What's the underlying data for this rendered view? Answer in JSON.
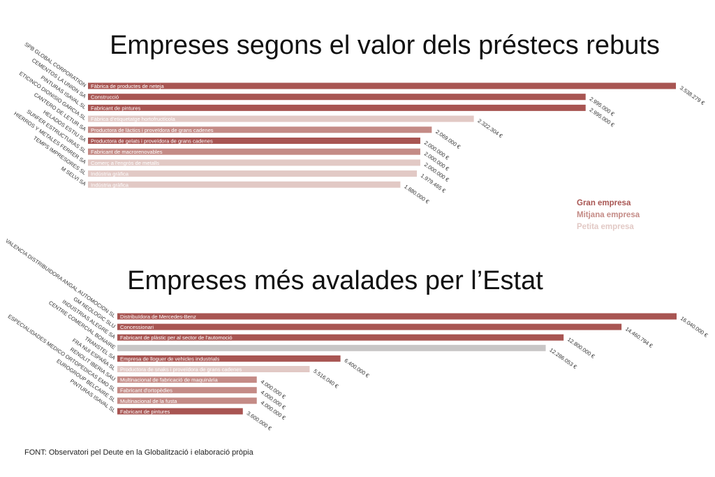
{
  "colors": {
    "gran": "#a85552",
    "mitjana": "#c48b86",
    "petita": "#e2c9c5",
    "unknown": "#c8c6c6"
  },
  "legend": [
    {
      "label": "Gran empresa",
      "size": "gran"
    },
    {
      "label": "Mitjana empresa",
      "size": "mitjana"
    },
    {
      "label": "Petita empresa",
      "size": "petita"
    }
  ],
  "source": "FONT: Observatori pel Deute en la Globalització i elaboració pròpia",
  "chart_data": [
    {
      "type": "bar",
      "orientation": "horizontal",
      "title": "Empreses segons el valor dels préstecs rebuts",
      "xlim": [
        0,
        3538279
      ],
      "companies": [
        "SPB GLOBAL CORPORATION",
        "CEMENTOS LA UNION SA",
        "PINTURAS ISAVAL SL",
        "ETICINCO DIONISIO GARCIA SL",
        "CANTERO DE LETUR SA",
        "HELADOS ESTIU SA",
        "SUNFER ESTRUCTURAS SL",
        "HIERROS Y METALES FERRER SA",
        "TEMPS IMPRESORES SL",
        "M SELVI SA"
      ],
      "categories": [
        "Fàbrica de productes de neteja",
        "Construcció",
        "Fabricant de pintures",
        "Fàbrica d'etiquetatge hortofructícola",
        "Productora de làctics i proveïdora de grans cadenes",
        "Productora de gelats i proveïdora de grans cadenes",
        "Fabricant de macrorenovables",
        "Comerç a l'engròs de metalls",
        "Indústria gràfica",
        "Indústria gràfica"
      ],
      "values": [
        3538279,
        2995000,
        2995000,
        2322304,
        2069000,
        2000000,
        2000000,
        2000000,
        1979465,
        1880000
      ],
      "value_labels": [
        "3.538.279 €",
        "2.995.000 €",
        "2.995.000 €",
        "2.322.304 €",
        "2.069.000 €",
        "2.000.000 €",
        "2.000.000 €",
        "2.000.000 €",
        "1.979.465 €",
        "1.880.000 €"
      ],
      "sizes": [
        "gran",
        "gran",
        "gran",
        "petita",
        "mitjana",
        "gran",
        "mitjana",
        "petita",
        "petita",
        "petita"
      ]
    },
    {
      "type": "bar",
      "orientation": "horizontal",
      "title": "Empreses més avalades per l’Estat",
      "xlim": [
        0,
        16040000
      ],
      "companies": [
        "VALENCIA DISTRIBUIDORA ANGAL AUTOMOCION SL",
        "GM NEOLOGIC SLU",
        "INDUSTRIAS ALEGRE SA",
        "CENTRE COMERCIAL BONAIRE",
        "TRANSTEL SA",
        "FRA NUI ESPAÑA SL",
        "RENOLIT IBERIA SAU",
        "ESPECIALIDADES MEDICO ORTOPEDICAS EMO SL",
        "EUROGROUP BELCAIRE SL",
        "PINTURAS ISAVAL SL"
      ],
      "categories": [
        "Distribuïdora de Mercedes-Benz",
        "Concessionari",
        "Fabricant de plàstic per al sector de l'automoció",
        "",
        "Empresa de lloguer de vehicles industrials",
        "Productora de snaks i proveïdora de grans cadenes",
        "Multinacional de fabricació de maquinària",
        "Fabricant d'ortopèdies",
        "Multinacional de la fusta",
        "Fabricant de pintures"
      ],
      "values": [
        16040000,
        14460794,
        12800000,
        12286053,
        6400000,
        5516040,
        4000000,
        4000000,
        4000000,
        3600000
      ],
      "value_labels": [
        "16.040.000 €",
        "14.460.794 €",
        "12.800.000 €",
        "12.286.053 €",
        "6.400.000 €",
        "5.516.040 €",
        "4.000.000 €",
        "4.000.000 €",
        "4.000.000 €",
        "3.600.000 €"
      ],
      "sizes": [
        "gran",
        "gran",
        "gran",
        "unknown",
        "gran",
        "petita",
        "mitjana",
        "mitjana",
        "mitjana",
        "gran"
      ]
    }
  ]
}
